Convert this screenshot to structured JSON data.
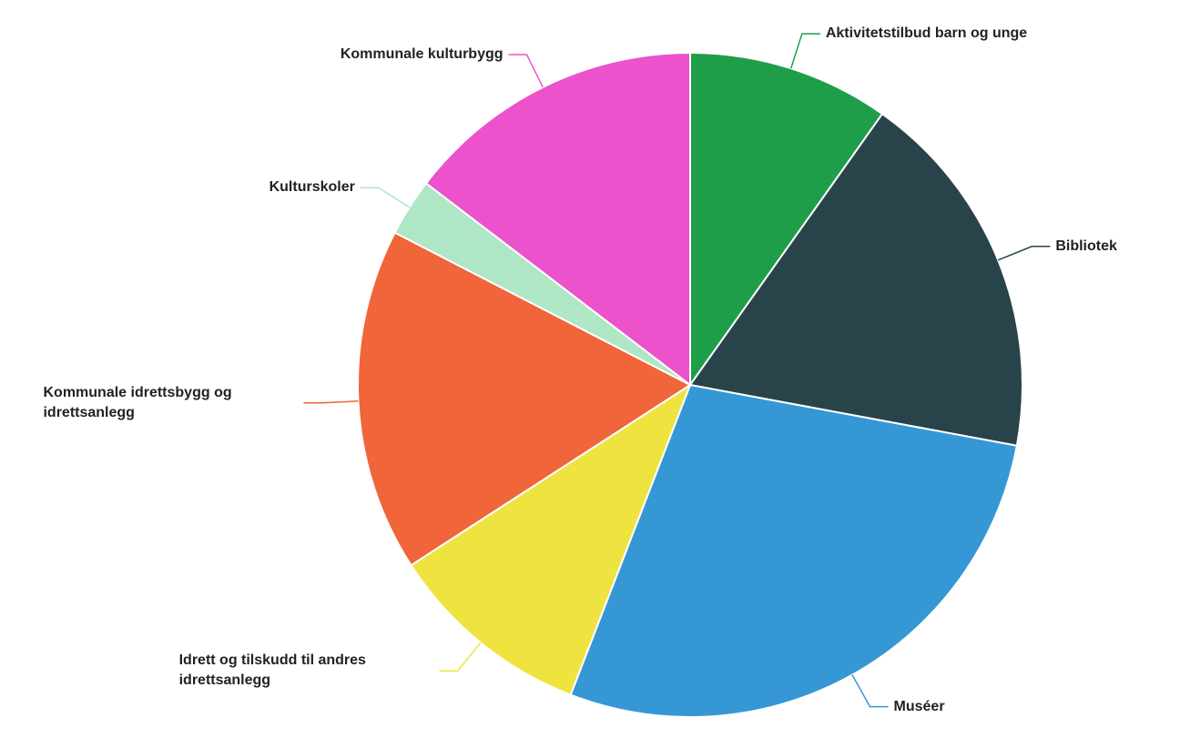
{
  "chart_data": {
    "type": "pie",
    "categories": [
      "Aktivitetstilbud barn og unge",
      "Bibliotek",
      "Muséer",
      "Idrett og tilskudd til andres idrettsanlegg",
      "Kommunale idrettsbygg og idrettsanlegg",
      "Kulturskoler",
      "Kommunale kulturbygg"
    ],
    "values": [
      9.8,
      18.1,
      27.9,
      10,
      16.7,
      2.8,
      14.6
    ],
    "colors": [
      "#1e9e48",
      "#29434a",
      "#3697d5",
      "#efe340",
      "#f0653a",
      "#afe6c6",
      "#eb52cb"
    ]
  }
}
